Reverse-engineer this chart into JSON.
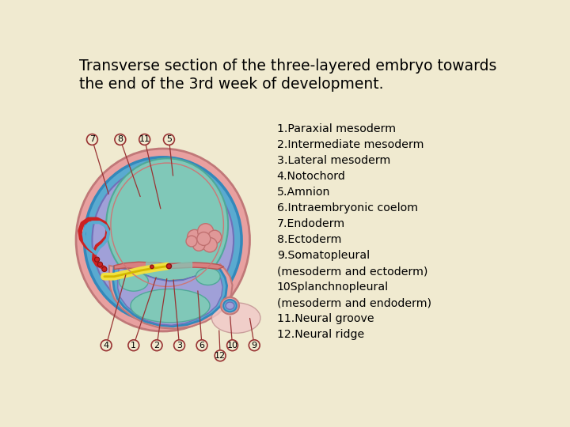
{
  "title_line1": "Transverse section of the three-layered embryo towards",
  "title_line2": "the end of the 3rd week of development.",
  "bg_color": "#f0ead0",
  "colors": {
    "pink_outer": "#e8a0a0",
    "pink_light": "#f0c8c8",
    "blue_layer": "#5aaad0",
    "blue_dark": "#3388bb",
    "purple_layer": "#a0a0d8",
    "teal_inner": "#80c8b8",
    "teal_dark": "#50a898",
    "red_dark": "#cc2222",
    "red_medium": "#dd4444",
    "yellow": "#f0e040",
    "yellow_dark": "#d4b800",
    "label_line": "#993333",
    "circle_fill": "#f0ead0",
    "dark_navy": "#222255"
  },
  "legend_text": "1.Paraxial mesoderm\n2.Intermediate mesoderm\n3.Lateral mesoderm\n4.Notochord\n5.Amnion\n6.Intraembryonic coelom\n7.Endoderm\n8.Ectoderm\n9.Somatopleural\n(mesoderm and ectoderm)\n10Splanchnopleural\n(mesoderm and endoderm)\n11.Neural groove\n12.Neural ridge"
}
